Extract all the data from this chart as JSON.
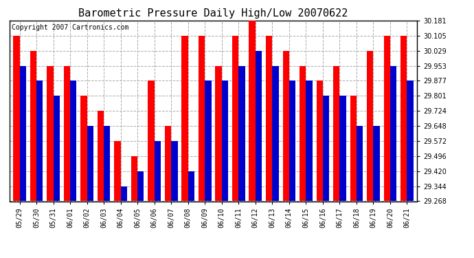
{
  "title": "Barometric Pressure Daily High/Low 20070622",
  "copyright": "Copyright 2007 Cartronics.com",
  "categories": [
    "05/29",
    "05/30",
    "05/31",
    "06/01",
    "06/02",
    "06/03",
    "06/04",
    "06/05",
    "06/06",
    "06/07",
    "06/08",
    "06/09",
    "06/10",
    "06/11",
    "06/12",
    "06/13",
    "06/14",
    "06/15",
    "06/16",
    "06/17",
    "06/18",
    "06/19",
    "06/20",
    "06/21"
  ],
  "highs": [
    30.105,
    30.029,
    29.953,
    29.953,
    29.801,
    29.724,
    29.572,
    29.496,
    29.877,
    29.648,
    30.105,
    30.105,
    29.953,
    30.105,
    30.181,
    30.105,
    30.029,
    29.953,
    29.877,
    29.953,
    29.801,
    30.029,
    30.105,
    30.105
  ],
  "lows": [
    29.953,
    29.877,
    29.801,
    29.877,
    29.648,
    29.648,
    29.344,
    29.42,
    29.572,
    29.572,
    29.42,
    29.877,
    29.877,
    29.953,
    30.029,
    29.953,
    29.877,
    29.877,
    29.801,
    29.801,
    29.648,
    29.648,
    29.953,
    29.877
  ],
  "ymin": 29.268,
  "ymax": 30.181,
  "yticks": [
    29.268,
    29.344,
    29.42,
    29.496,
    29.572,
    29.648,
    29.724,
    29.801,
    29.877,
    29.953,
    30.029,
    30.105,
    30.181
  ],
  "high_color": "#ff0000",
  "low_color": "#0000cc",
  "background_color": "#ffffff",
  "grid_color": "#aaaaaa",
  "bar_width": 0.38,
  "title_fontsize": 11,
  "tick_fontsize": 7,
  "copyright_fontsize": 7,
  "fig_width": 6.9,
  "fig_height": 3.75,
  "dpi": 100
}
